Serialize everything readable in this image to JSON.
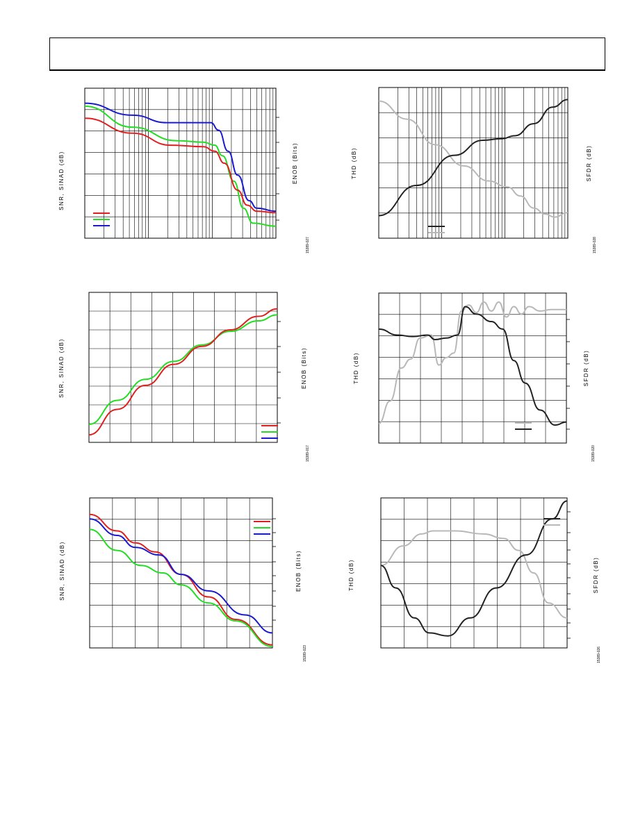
{
  "charts": [
    {
      "id": "chart-1",
      "ylabel": "SNR, SINAD (dB)",
      "y2label": "ENOB (Bits)",
      "code": "15389-027"
    },
    {
      "id": "chart-2",
      "ylabel": "THD (dB)",
      "y2label": "SFDR (dB)",
      "code": "15389-028"
    },
    {
      "id": "chart-3",
      "ylabel": "SNR, SINAD (dB)",
      "y2label": "ENOB (Bits)",
      "code": "15389-017"
    },
    {
      "id": "chart-4",
      "ylabel": "THD (dB)",
      "y2label": "SFDR (dB)",
      "code": "15389-020"
    },
    {
      "id": "chart-5",
      "ylabel": "SNR, SINAD (dB)",
      "y2label": "ENOB (Bits)",
      "code": "15389-023"
    },
    {
      "id": "chart-6",
      "ylabel": "THD (dB)",
      "y2label": "SFDR (dB)",
      "code": "15389-026"
    }
  ],
  "colors": {
    "red": "#e02020",
    "green": "#22dd22",
    "blue": "#1a1ad0",
    "dark": "#222222",
    "light": "#b8b8b8"
  },
  "chart_data": [
    {
      "type": "line",
      "x_scale": "log",
      "xlim": [
        0,
        1
      ],
      "ylim": [
        0,
        1
      ],
      "series": [
        {
          "color": "blue",
          "points": [
            [
              0,
              0.9
            ],
            [
              0.25,
              0.82
            ],
            [
              0.43,
              0.77
            ],
            [
              0.66,
              0.77
            ],
            [
              0.7,
              0.72
            ],
            [
              0.75,
              0.58
            ],
            [
              0.8,
              0.42
            ],
            [
              0.86,
              0.25
            ],
            [
              0.9,
              0.2
            ],
            [
              1.0,
              0.18
            ]
          ]
        },
        {
          "color": "green",
          "points": [
            [
              0,
              0.88
            ],
            [
              0.25,
              0.74
            ],
            [
              0.48,
              0.65
            ],
            [
              0.62,
              0.64
            ],
            [
              0.68,
              0.62
            ],
            [
              0.72,
              0.55
            ],
            [
              0.78,
              0.38
            ],
            [
              0.83,
              0.2
            ],
            [
              0.88,
              0.1
            ],
            [
              1.0,
              0.08
            ]
          ]
        },
        {
          "color": "red",
          "points": [
            [
              0,
              0.8
            ],
            [
              0.25,
              0.7
            ],
            [
              0.45,
              0.62
            ],
            [
              0.62,
              0.61
            ],
            [
              0.68,
              0.58
            ],
            [
              0.73,
              0.5
            ],
            [
              0.8,
              0.32
            ],
            [
              0.85,
              0.22
            ],
            [
              0.9,
              0.18
            ],
            [
              1.0,
              0.17
            ]
          ]
        }
      ]
    },
    {
      "type": "line",
      "x_scale": "log",
      "xlim": [
        0,
        1
      ],
      "ylim": [
        0,
        1
      ],
      "series": [
        {
          "color": "light",
          "points": [
            [
              0,
              0.91
            ],
            [
              0.15,
              0.79
            ],
            [
              0.3,
              0.62
            ],
            [
              0.45,
              0.48
            ],
            [
              0.58,
              0.38
            ],
            [
              0.68,
              0.34
            ],
            [
              0.75,
              0.28
            ],
            [
              0.82,
              0.2
            ],
            [
              0.88,
              0.16
            ],
            [
              0.93,
              0.14
            ],
            [
              1.0,
              0.17
            ]
          ]
        },
        {
          "color": "dark",
          "points": [
            [
              0,
              0.15
            ],
            [
              0.2,
              0.35
            ],
            [
              0.4,
              0.55
            ],
            [
              0.55,
              0.65
            ],
            [
              0.65,
              0.66
            ],
            [
              0.72,
              0.68
            ],
            [
              0.82,
              0.76
            ],
            [
              0.92,
              0.87
            ],
            [
              1.0,
              0.92
            ]
          ]
        }
      ]
    },
    {
      "type": "line",
      "xlim": [
        0,
        1
      ],
      "ylim": [
        0,
        1
      ],
      "series": [
        {
          "color": "green",
          "points": [
            [
              0,
              0.12
            ],
            [
              0.15,
              0.28
            ],
            [
              0.3,
              0.42
            ],
            [
              0.45,
              0.54
            ],
            [
              0.6,
              0.65
            ],
            [
              0.75,
              0.74
            ],
            [
              0.9,
              0.81
            ],
            [
              1.0,
              0.85
            ]
          ]
        },
        {
          "color": "red",
          "points": [
            [
              0,
              0.05
            ],
            [
              0.15,
              0.22
            ],
            [
              0.3,
              0.38
            ],
            [
              0.45,
              0.52
            ],
            [
              0.6,
              0.64
            ],
            [
              0.75,
              0.75
            ],
            [
              0.9,
              0.84
            ],
            [
              1.0,
              0.89
            ]
          ]
        }
      ]
    },
    {
      "type": "line",
      "xlim": [
        0,
        1
      ],
      "ylim": [
        0,
        1
      ],
      "series": [
        {
          "color": "light",
          "points": [
            [
              0,
              0.13
            ],
            [
              0.06,
              0.28
            ],
            [
              0.12,
              0.5
            ],
            [
              0.17,
              0.56
            ],
            [
              0.22,
              0.7
            ],
            [
              0.28,
              0.72
            ],
            [
              0.32,
              0.52
            ],
            [
              0.36,
              0.57
            ],
            [
              0.4,
              0.6
            ],
            [
              0.44,
              0.88
            ],
            [
              0.48,
              0.92
            ],
            [
              0.52,
              0.87
            ],
            [
              0.56,
              0.94
            ],
            [
              0.6,
              0.88
            ],
            [
              0.64,
              0.94
            ],
            [
              0.68,
              0.84
            ],
            [
              0.72,
              0.91
            ],
            [
              0.76,
              0.86
            ],
            [
              0.8,
              0.91
            ],
            [
              0.86,
              0.88
            ],
            [
              0.92,
              0.89
            ],
            [
              1.0,
              0.89
            ]
          ]
        },
        {
          "color": "dark",
          "points": [
            [
              0,
              0.76
            ],
            [
              0.1,
              0.72
            ],
            [
              0.18,
              0.71
            ],
            [
              0.26,
              0.72
            ],
            [
              0.3,
              0.69
            ],
            [
              0.36,
              0.7
            ],
            [
              0.42,
              0.72
            ],
            [
              0.46,
              0.91
            ],
            [
              0.52,
              0.86
            ],
            [
              0.6,
              0.81
            ],
            [
              0.66,
              0.76
            ],
            [
              0.72,
              0.55
            ],
            [
              0.78,
              0.4
            ],
            [
              0.86,
              0.22
            ],
            [
              0.94,
              0.12
            ],
            [
              1.0,
              0.14
            ]
          ]
        }
      ]
    },
    {
      "type": "line",
      "xlim": [
        0,
        1
      ],
      "ylim": [
        0,
        1
      ],
      "series": [
        {
          "color": "red",
          "points": [
            [
              0,
              0.89
            ],
            [
              0.15,
              0.78
            ],
            [
              0.25,
              0.7
            ],
            [
              0.36,
              0.64
            ],
            [
              0.5,
              0.49
            ],
            [
              0.65,
              0.34
            ],
            [
              0.8,
              0.19
            ],
            [
              1.0,
              0.02
            ]
          ]
        },
        {
          "color": "blue",
          "points": [
            [
              0,
              0.86
            ],
            [
              0.15,
              0.75
            ],
            [
              0.25,
              0.67
            ],
            [
              0.38,
              0.62
            ],
            [
              0.5,
              0.49
            ],
            [
              0.65,
              0.38
            ],
            [
              0.85,
              0.22
            ],
            [
              1.0,
              0.1
            ]
          ]
        },
        {
          "color": "green",
          "points": [
            [
              0,
              0.79
            ],
            [
              0.15,
              0.65
            ],
            [
              0.28,
              0.55
            ],
            [
              0.4,
              0.5
            ],
            [
              0.5,
              0.42
            ],
            [
              0.65,
              0.3
            ],
            [
              0.8,
              0.18
            ],
            [
              1.0,
              0.01
            ]
          ]
        }
      ]
    },
    {
      "type": "line",
      "xlim": [
        0,
        1
      ],
      "ylim": [
        0,
        1
      ],
      "series": [
        {
          "color": "light",
          "points": [
            [
              0,
              0.55
            ],
            [
              0.12,
              0.68
            ],
            [
              0.22,
              0.76
            ],
            [
              0.28,
              0.78
            ],
            [
              0.4,
              0.78
            ],
            [
              0.55,
              0.76
            ],
            [
              0.66,
              0.73
            ],
            [
              0.74,
              0.65
            ],
            [
              0.82,
              0.5
            ],
            [
              0.9,
              0.3
            ],
            [
              1.0,
              0.2
            ]
          ]
        },
        {
          "color": "dark",
          "points": [
            [
              0,
              0.55
            ],
            [
              0.08,
              0.4
            ],
            [
              0.18,
              0.2
            ],
            [
              0.26,
              0.1
            ],
            [
              0.36,
              0.08
            ],
            [
              0.48,
              0.2
            ],
            [
              0.62,
              0.4
            ],
            [
              0.78,
              0.62
            ],
            [
              0.92,
              0.86
            ],
            [
              1.0,
              0.98
            ]
          ]
        }
      ]
    }
  ]
}
